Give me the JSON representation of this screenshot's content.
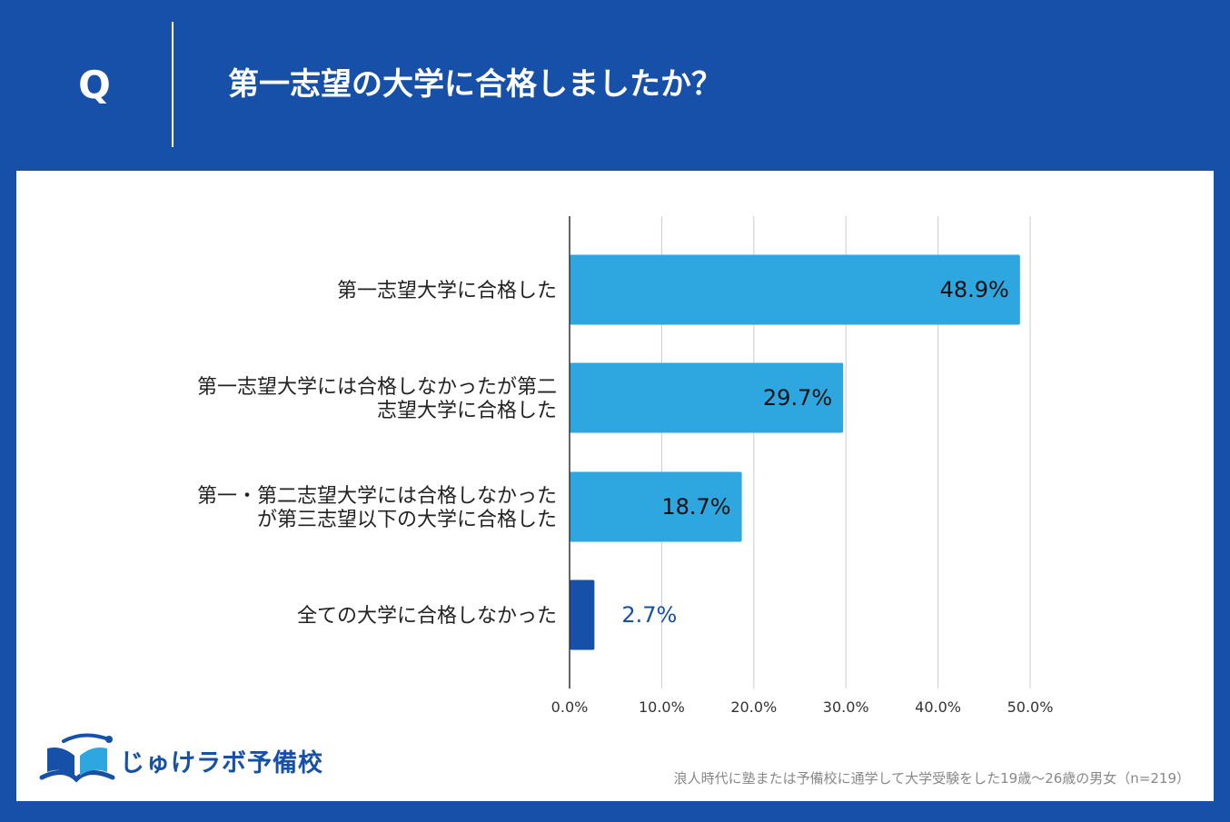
{
  "header": {
    "q_label": "Q",
    "question": "第一志望の大学に合格しましたか？"
  },
  "chart_data": {
    "type": "bar",
    "orientation": "horizontal",
    "categories": [
      [
        "第一志望大学に合格した"
      ],
      [
        "第一志望大学には合格しなかったが第二",
        "志望大学に合格した"
      ],
      [
        "第一・第二志望大学には合格しなかった",
        "が第三志望以下の大学に合格した"
      ],
      [
        "全ての大学に合格しなかった"
      ]
    ],
    "values": [
      48.9,
      29.7,
      18.7,
      2.7
    ],
    "value_labels": [
      "48.9%",
      "29.7%",
      "18.7%",
      "2.7%"
    ],
    "bar_colors": [
      "#2ea6e0",
      "#2ea6e0",
      "#2ea6e0",
      "#1650a8"
    ],
    "value_label_colors": [
      "#111111",
      "#111111",
      "#111111",
      "#1650a8"
    ],
    "x_ticks": [
      "0.0%",
      "10.0%",
      "20.0%",
      "30.0%",
      "40.0%",
      "50.0%"
    ],
    "xlim": [
      0,
      50
    ],
    "grid": true
  },
  "logo": {
    "text": "じゅけラボ予備校"
  },
  "footnote": "浪人時代に塾または予備校に通学して大学受験をした19歳～26歳の男女（n=219）",
  "colors": {
    "background": "#1650a8",
    "panel": "#ffffff",
    "bar_primary": "#2ea6e0",
    "bar_highlight": "#1650a8"
  }
}
